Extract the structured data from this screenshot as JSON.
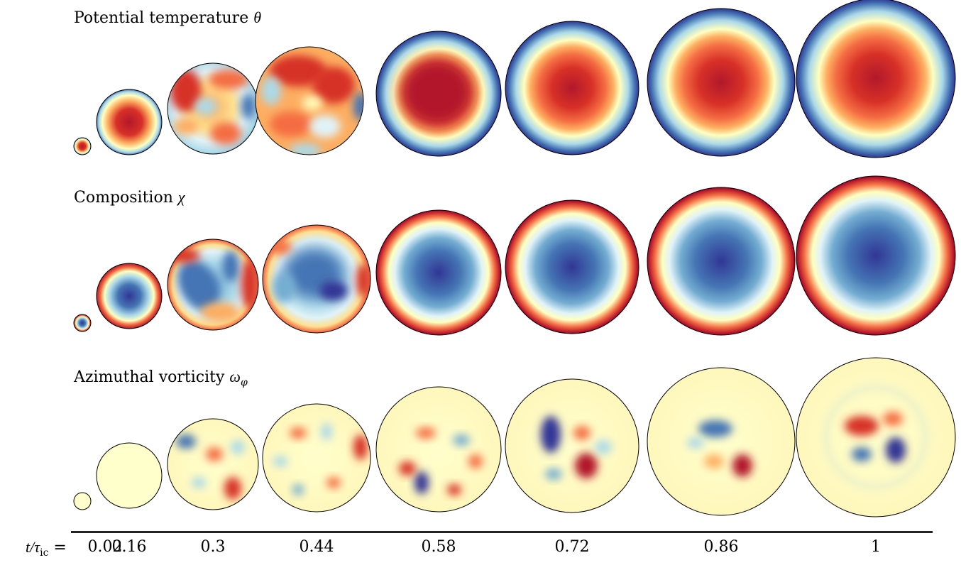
{
  "panels": [
    {
      "name": "Potential temperature",
      "symbol": "θ",
      "subscript": "",
      "colormap": "warm-center"
    },
    {
      "name": "Composition",
      "symbol": "χ",
      "subscript": "",
      "colormap": "cool-center"
    },
    {
      "name": "Azimuthal vorticity",
      "symbol": "ω",
      "subscript": "φ",
      "colormap": "diverging-pale"
    }
  ],
  "time_axis": {
    "prefix_var": "t/τ",
    "prefix_sub": "ic",
    "prefix_eq": " = ",
    "labels": [
      "0.02",
      "0.16",
      "0.3",
      "0.44",
      "0.58",
      "0.72",
      "0.86",
      "1"
    ],
    "values": [
      0.02,
      0.16,
      0.3,
      0.44,
      0.58,
      0.72,
      0.86,
      1
    ]
  },
  "colors": {
    "deep_red": "#b2182b",
    "red": "#d73027",
    "orange": "#f46d43",
    "light_orange": "#fdae61",
    "pale_yellow": "#ffffbf",
    "light_blue": "#abd9e9",
    "blue": "#4575b4",
    "deep_blue": "#313695"
  }
}
